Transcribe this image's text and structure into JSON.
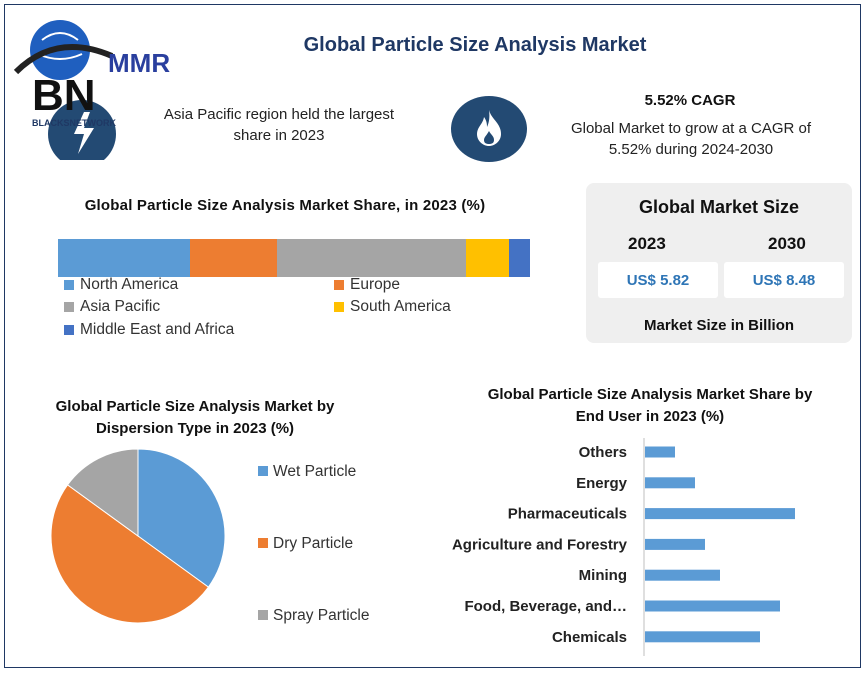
{
  "logo": {
    "brand": "MMR",
    "network": "BLACKSNETWORK",
    "bn": "BN"
  },
  "header": {
    "title": "Global Particle Size Analysis Market"
  },
  "highlights": {
    "region_note": "Asia Pacific region held the largest share in 2023",
    "cagr_title": "5.52% CAGR",
    "cagr_text": "Global Market to grow at a CAGR of 5.52% during 2024-2030",
    "fire_icon": "flame-icon"
  },
  "market_size": {
    "title": "Global Market Size",
    "year_start": "2023",
    "year_end": "2030",
    "value_start": "US$ 5.82",
    "value_end": "US$ 8.48",
    "note": "Market Size in Billion"
  },
  "colors": {
    "blue": "#5b9bd5",
    "orange": "#ed7d31",
    "gray": "#a5a5a5",
    "yellow": "#ffc000",
    "dark_blue": "#4472c4",
    "title_navy": "#1f3864"
  },
  "chart_data": [
    {
      "type": "bar",
      "orientation": "stacked-horizontal",
      "title": "Global Particle Size Analysis Market Share, in 2023 (%)",
      "categories": [
        "North America",
        "Europe",
        "Asia Pacific",
        "South America",
        "Middle East and Africa"
      ],
      "values": [
        28,
        18.5,
        40,
        9,
        4.5
      ],
      "legend": "bottom"
    },
    {
      "type": "pie",
      "title": "Global Particle Size Analysis Market by Dispersion Type in 2023 (%)",
      "categories": [
        "Wet Particle",
        "Dry Particle",
        "Spray Particle"
      ],
      "values": [
        35,
        50,
        15
      ],
      "legend": "right"
    },
    {
      "type": "bar",
      "orientation": "horizontal",
      "title": "Global Particle Size Analysis Market Share by End User in 2023 (%)",
      "categories": [
        "Others",
        "Energy",
        "Pharmaceuticals",
        "Agriculture and Forestry",
        "Mining",
        "Food, Beverage, and…",
        "Chemicals"
      ],
      "values": [
        3,
        5,
        15,
        6,
        7.5,
        13.5,
        11.5
      ],
      "xlim": [
        0,
        16
      ],
      "grid": false
    }
  ]
}
